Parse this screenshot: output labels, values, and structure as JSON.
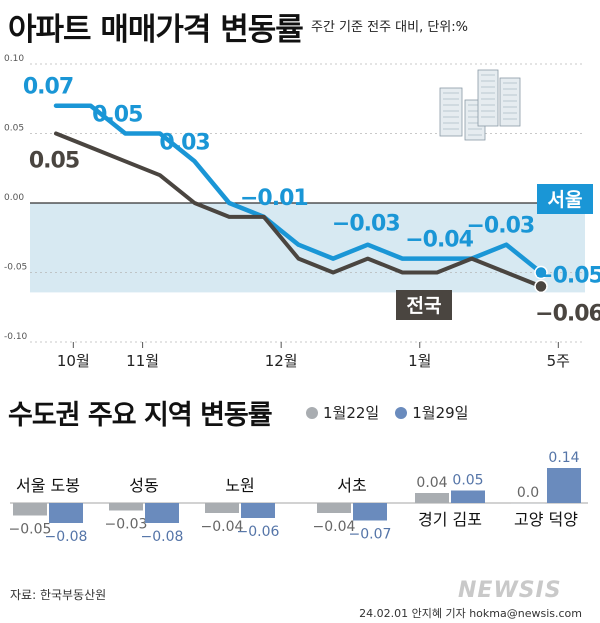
{
  "header": {
    "title": "아파트 매매가격 변동률",
    "subtitle": "주간 기준 전주 대비, 단위:%"
  },
  "section2": {
    "title": "수도권 주요 지역 변동률",
    "legend": [
      {
        "label": "1월22일",
        "color": "#a9adb1"
      },
      {
        "label": "1월29일",
        "color": "#6a8bbd"
      }
    ]
  },
  "footer": {
    "source": "자료: 한국부동산원",
    "byline": "24.02.01 안지혜 기자 hokma@newsis.com",
    "watermark": "NEWSIS"
  },
  "colors": {
    "seoul": "#1a96d6",
    "national": "#4a4540",
    "band": "#d7e9f2",
    "bar_prev": "#a9adb1",
    "bar_curr": "#6a8bbd"
  },
  "chart_data": [
    {
      "type": "line",
      "y_ticks": [
        "0.10",
        "0.05",
        "0.00",
        "-0.05",
        "-0.10"
      ],
      "ylim": [
        -0.1,
        0.1
      ],
      "x_labels": [
        "10월",
        "11월",
        "12월",
        "1월",
        "5주"
      ],
      "x_label_index": [
        0.5,
        2.5,
        6.5,
        10.5,
        14.5
      ],
      "series": [
        {
          "name": "서울",
          "values": [
            0.07,
            0.07,
            0.05,
            0.05,
            0.03,
            0.0,
            -0.01,
            -0.03,
            -0.04,
            -0.03,
            -0.04,
            -0.04,
            -0.04,
            -0.03,
            -0.05
          ],
          "labels": {
            "0": "0.07",
            "2": "0.05",
            "4": "0.03",
            "6": "−0.01",
            "9": "−0.03",
            "11": "−0.04",
            "13": "−0.03",
            "14": "−0.05"
          }
        },
        {
          "name": "전국",
          "values": [
            0.05,
            0.04,
            0.03,
            0.02,
            0.0,
            -0.01,
            -0.01,
            -0.04,
            -0.05,
            -0.04,
            -0.05,
            -0.05,
            -0.04,
            -0.05,
            -0.06
          ],
          "labels": {
            "0": "0.05",
            "14": "−0.06"
          }
        }
      ]
    },
    {
      "type": "bar",
      "categories": [
        "서울 도봉",
        "성동",
        "노원",
        "서초",
        "경기 김포",
        "고양 덕양"
      ],
      "series": [
        {
          "name": "1월22일",
          "values": [
            -0.05,
            -0.03,
            -0.04,
            -0.04,
            0.04,
            0.0
          ],
          "labels": [
            "−0.05",
            "−0.03",
            "−0.04",
            "−0.04",
            "0.04",
            "0.0"
          ]
        },
        {
          "name": "1월29일",
          "values": [
            -0.08,
            -0.08,
            -0.06,
            -0.07,
            0.05,
            0.14
          ],
          "labels": [
            "−0.08",
            "−0.08",
            "−0.06",
            "−0.07",
            "0.05",
            "0.14"
          ]
        }
      ]
    }
  ]
}
